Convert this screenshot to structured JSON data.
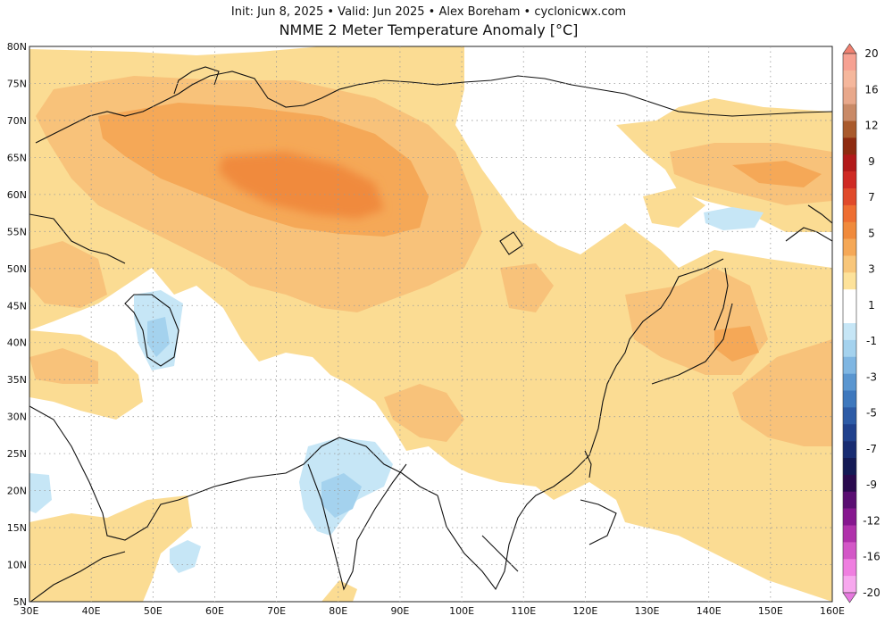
{
  "header": {
    "subtitle": "Init: Jun 8, 2025 • Valid: Jun 2025 • Alex Boreham • cyclonicwx.com",
    "title": "NMME 2 Meter Temperature Anomaly [°C]"
  },
  "map": {
    "projection": "equirectangular",
    "lon_range": [
      30,
      160
    ],
    "lat_range": [
      5,
      80
    ],
    "grid": true,
    "lat_ticks": [
      "5N",
      "10N",
      "15N",
      "20N",
      "25N",
      "30N",
      "35N",
      "40N",
      "45N",
      "50N",
      "55N",
      "60N",
      "65N",
      "70N",
      "75N",
      "80N"
    ],
    "lon_ticks": [
      "30E",
      "40E",
      "50E",
      "60E",
      "70E",
      "80E",
      "90E",
      "100E",
      "110E",
      "120E",
      "130E",
      "140E",
      "150E",
      "160E"
    ]
  },
  "colorbar": {
    "labels": [
      "20",
      "16",
      "12",
      "9",
      "7",
      "5",
      "3",
      "1",
      "-1",
      "-3",
      "-5",
      "-7",
      "-9",
      "-12",
      "-16",
      "-20"
    ],
    "colors": [
      "#f6a192",
      "#f5b79c",
      "#e8a88b",
      "#c98a67",
      "#a95a2c",
      "#8e2b10",
      "#b21a1a",
      "#cf2a24",
      "#e04a2b",
      "#ee6e32",
      "#f08a3c",
      "#f5a857",
      "#f8c67a",
      "#fde29a",
      "#ffffff",
      "#ffffff",
      "#c6e6f6",
      "#a4d2ee",
      "#7fb6e2",
      "#5a96d0",
      "#3e78bd",
      "#2d5ba6",
      "#20418d",
      "#182c72",
      "#141a55",
      "#2a0a4e",
      "#5a0e72",
      "#86178f",
      "#b032ab",
      "#d357c7",
      "#ef7fe0",
      "#f7a8ee"
    ],
    "upper_arrow_color": "#f08070",
    "lower_arrow_color": "#e678de"
  }
}
